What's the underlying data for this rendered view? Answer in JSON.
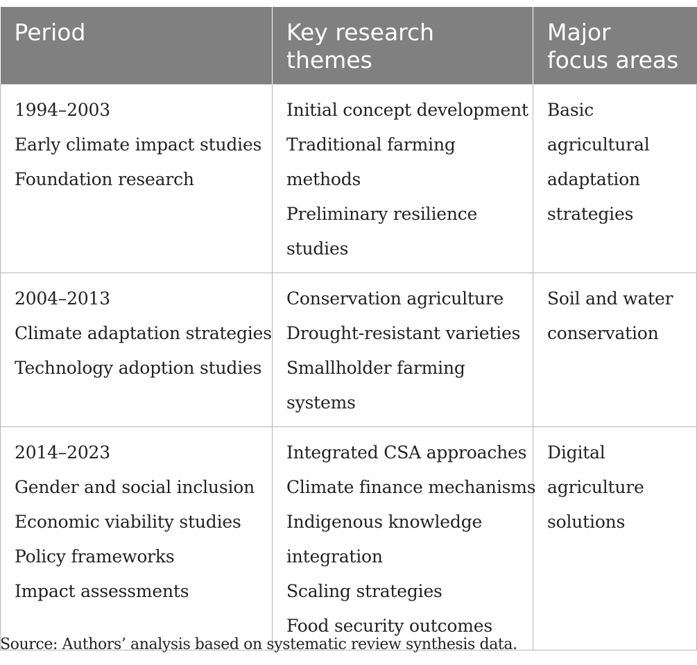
{
  "table": {
    "headers": [
      [
        "Period"
      ],
      [
        "Key research",
        "themes"
      ],
      [
        "Major",
        "focus areas"
      ]
    ],
    "rows": [
      {
        "period": [
          "1994–2003",
          "Early climate impact studies",
          "Foundation research"
        ],
        "themes": [
          "Initial concept development",
          "Traditional farming",
          "methods",
          "Preliminary resilience",
          "studies"
        ],
        "focus": [
          "Basic",
          "agricultural",
          "adaptation",
          "strategies"
        ]
      },
      {
        "period": [
          "2004–2013",
          "Climate adaptation strategies",
          "Technology adoption studies"
        ],
        "themes": [
          "Conservation agriculture",
          "Drought-resistant varieties",
          "Smallholder farming",
          "systems"
        ],
        "focus": [
          "Soil and water",
          "conservation"
        ]
      },
      {
        "period": [
          "2014–2023",
          "Gender and social inclusion",
          "Economic viability studies",
          "Policy frameworks",
          "Impact assessments"
        ],
        "themes": [
          "Integrated CSA approaches",
          "Climate finance mechanisms",
          "Indigenous knowledge",
          "integration",
          "Scaling strategies",
          "Food security outcomes"
        ],
        "focus": [
          "Digital",
          "agriculture",
          "solutions"
        ]
      }
    ]
  },
  "source_note": "Source: Authors’ analysis based on systematic review synthesis data.",
  "colors": {
    "header_bg": "#808080",
    "header_text": "#ffffff",
    "grid_line": "#b5b5b5",
    "body_text": "#222222"
  }
}
